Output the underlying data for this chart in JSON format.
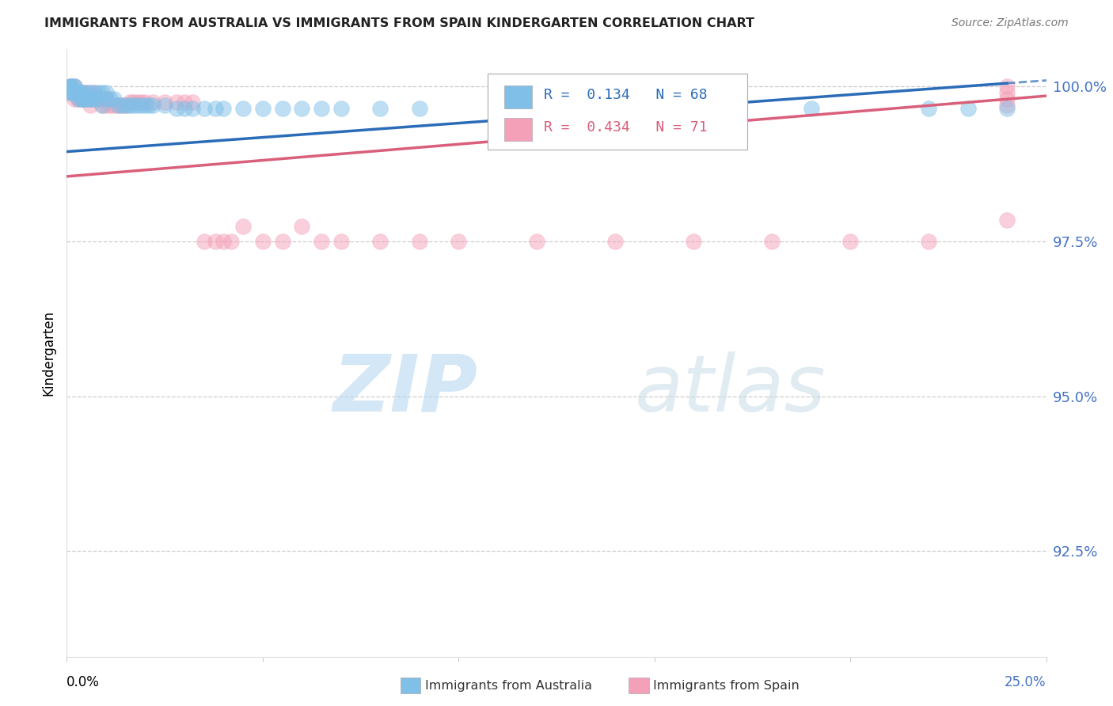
{
  "title": "IMMIGRANTS FROM AUSTRALIA VS IMMIGRANTS FROM SPAIN KINDERGARTEN CORRELATION CHART",
  "source": "Source: ZipAtlas.com",
  "ylabel": "Kindergarten",
  "ytick_labels": [
    "100.0%",
    "97.5%",
    "95.0%",
    "92.5%"
  ],
  "ytick_values": [
    1.0,
    0.975,
    0.95,
    0.925
  ],
  "xmin": 0.0,
  "xmax": 0.25,
  "ymin": 0.908,
  "ymax": 1.006,
  "legend_line1": "R =  0.134   N = 68",
  "legend_line2": "R =  0.434   N = 71",
  "australia_color": "#7fbfe8",
  "spain_color": "#f4a0b8",
  "australia_line_color": "#2b6cb8",
  "spain_line_color": "#d95f7a",
  "watermark_zip": "ZIP",
  "watermark_atlas": "atlas",
  "bottom_legend_aus": "Immigrants from Australia",
  "bottom_legend_spa": "Immigrants from Spain",
  "aus_x": [
    0.001,
    0.001,
    0.001,
    0.001,
    0.001,
    0.002,
    0.002,
    0.002,
    0.002,
    0.002,
    0.003,
    0.003,
    0.003,
    0.003,
    0.003,
    0.004,
    0.004,
    0.004,
    0.004,
    0.004,
    0.005,
    0.005,
    0.005,
    0.006,
    0.006,
    0.006,
    0.007,
    0.007,
    0.008,
    0.008,
    0.009,
    0.009,
    0.01,
    0.01,
    0.011,
    0.012,
    0.013,
    0.014,
    0.015,
    0.016,
    0.017,
    0.018,
    0.019,
    0.02,
    0.021,
    0.022,
    0.025,
    0.028,
    0.03,
    0.032,
    0.035,
    0.038,
    0.04,
    0.045,
    0.05,
    0.055,
    0.06,
    0.065,
    0.07,
    0.08,
    0.09,
    0.12,
    0.14,
    0.16,
    0.19,
    0.22,
    0.23,
    0.24
  ],
  "aus_y": [
    1.0,
    1.0,
    1.0,
    0.999,
    0.999,
    1.0,
    1.0,
    0.999,
    0.999,
    0.999,
    0.999,
    0.999,
    0.999,
    0.999,
    0.998,
    0.999,
    0.999,
    0.998,
    0.998,
    0.998,
    0.999,
    0.998,
    0.998,
    0.999,
    0.998,
    0.998,
    0.999,
    0.998,
    0.999,
    0.998,
    0.999,
    0.997,
    0.999,
    0.998,
    0.998,
    0.998,
    0.997,
    0.997,
    0.997,
    0.997,
    0.997,
    0.997,
    0.997,
    0.997,
    0.997,
    0.997,
    0.997,
    0.9965,
    0.9965,
    0.9965,
    0.9965,
    0.9965,
    0.9965,
    0.9965,
    0.9965,
    0.9965,
    0.9965,
    0.9965,
    0.9965,
    0.9965,
    0.9965,
    0.9965,
    0.9965,
    0.9965,
    0.9965,
    0.9965,
    0.9965,
    0.9965
  ],
  "spa_x": [
    0.001,
    0.001,
    0.001,
    0.001,
    0.002,
    0.002,
    0.002,
    0.002,
    0.002,
    0.003,
    0.003,
    0.003,
    0.003,
    0.003,
    0.004,
    0.004,
    0.004,
    0.004,
    0.005,
    0.005,
    0.005,
    0.006,
    0.006,
    0.006,
    0.007,
    0.007,
    0.008,
    0.008,
    0.009,
    0.009,
    0.01,
    0.01,
    0.011,
    0.012,
    0.013,
    0.014,
    0.015,
    0.016,
    0.017,
    0.018,
    0.019,
    0.02,
    0.022,
    0.025,
    0.028,
    0.03,
    0.032,
    0.035,
    0.038,
    0.04,
    0.042,
    0.045,
    0.05,
    0.055,
    0.06,
    0.065,
    0.07,
    0.08,
    0.09,
    0.1,
    0.12,
    0.14,
    0.16,
    0.18,
    0.2,
    0.22,
    0.24,
    0.24,
    0.24,
    0.24,
    0.24
  ],
  "spa_y": [
    1.0,
    1.0,
    0.999,
    0.999,
    1.0,
    0.999,
    0.999,
    0.999,
    0.998,
    0.999,
    0.999,
    0.999,
    0.998,
    0.998,
    0.999,
    0.999,
    0.998,
    0.998,
    0.999,
    0.998,
    0.998,
    0.999,
    0.998,
    0.997,
    0.999,
    0.998,
    0.998,
    0.998,
    0.998,
    0.997,
    0.998,
    0.997,
    0.997,
    0.997,
    0.997,
    0.997,
    0.997,
    0.9975,
    0.9975,
    0.9975,
    0.9975,
    0.9975,
    0.9975,
    0.9975,
    0.9975,
    0.9975,
    0.9975,
    0.975,
    0.975,
    0.975,
    0.975,
    0.9775,
    0.975,
    0.975,
    0.9775,
    0.975,
    0.975,
    0.975,
    0.975,
    0.975,
    0.975,
    0.975,
    0.975,
    0.975,
    0.975,
    0.975,
    1.0,
    0.999,
    0.998,
    0.997,
    0.9785
  ]
}
